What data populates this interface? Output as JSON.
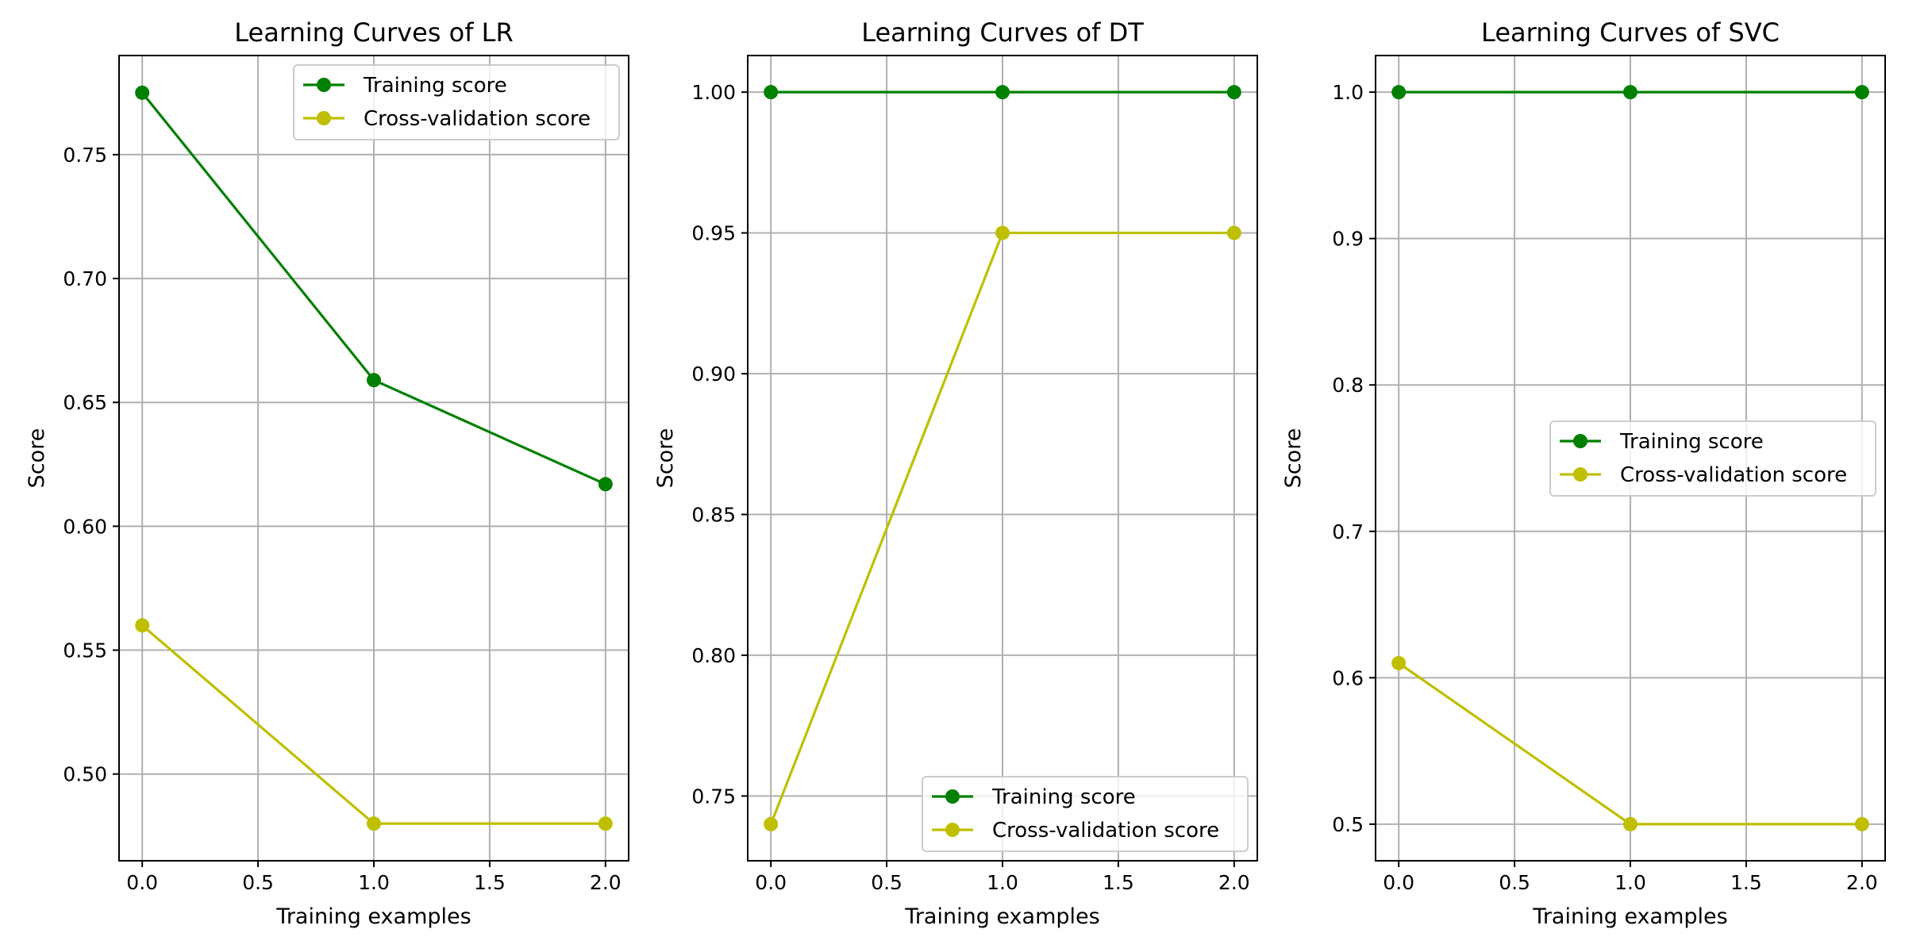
{
  "chart_data": [
    {
      "type": "line",
      "title": "Learning Curves of LR",
      "xlabel": "Training examples",
      "ylabel": "Score",
      "xlim": [
        -0.1,
        2.1
      ],
      "ylim": [
        0.465,
        0.79
      ],
      "xticks": [
        0.0,
        0.5,
        1.0,
        1.5,
        2.0
      ],
      "xtick_labels": [
        "0.0",
        "0.5",
        "1.0",
        "1.5",
        "2.0"
      ],
      "yticks": [
        0.5,
        0.55,
        0.6,
        0.65,
        0.7,
        0.75
      ],
      "ytick_labels": [
        "0.50",
        "0.55",
        "0.60",
        "0.65",
        "0.70",
        "0.75"
      ],
      "grid": true,
      "legend": "upper-right",
      "series": [
        {
          "name": "Training score",
          "color": "#008000",
          "x": [
            0,
            1,
            2
          ],
          "values": [
            0.775,
            0.659,
            0.617
          ]
        },
        {
          "name": "Cross-validation score",
          "color": "#bfbf00",
          "x": [
            0,
            1,
            2
          ],
          "values": [
            0.56,
            0.48,
            0.48
          ]
        }
      ]
    },
    {
      "type": "line",
      "title": "Learning Curves of DT",
      "xlabel": "Training examples",
      "ylabel": "Score",
      "xlim": [
        -0.1,
        2.1
      ],
      "ylim": [
        0.727,
        1.013
      ],
      "xticks": [
        0.0,
        0.5,
        1.0,
        1.5,
        2.0
      ],
      "xtick_labels": [
        "0.0",
        "0.5",
        "1.0",
        "1.5",
        "2.0"
      ],
      "yticks": [
        0.75,
        0.8,
        0.85,
        0.9,
        0.95,
        1.0
      ],
      "ytick_labels": [
        "0.75",
        "0.80",
        "0.85",
        "0.90",
        "0.95",
        "1.00"
      ],
      "grid": true,
      "legend": "lower-right",
      "series": [
        {
          "name": "Training score",
          "color": "#008000",
          "x": [
            0,
            1,
            2
          ],
          "values": [
            1.0,
            1.0,
            1.0
          ]
        },
        {
          "name": "Cross-validation score",
          "color": "#bfbf00",
          "x": [
            0,
            1,
            2
          ],
          "values": [
            0.74,
            0.95,
            0.95
          ]
        }
      ]
    },
    {
      "type": "line",
      "title": "Learning Curves of SVC",
      "xlabel": "Training examples",
      "ylabel": "Score",
      "xlim": [
        -0.1,
        2.1
      ],
      "ylim": [
        0.475,
        1.025
      ],
      "xticks": [
        0.0,
        0.5,
        1.0,
        1.5,
        2.0
      ],
      "xtick_labels": [
        "0.0",
        "0.5",
        "1.0",
        "1.5",
        "2.0"
      ],
      "yticks": [
        0.5,
        0.6,
        0.7,
        0.8,
        0.9,
        1.0
      ],
      "ytick_labels": [
        "0.5",
        "0.6",
        "0.7",
        "0.8",
        "0.9",
        "1.0"
      ],
      "grid": true,
      "legend": "center-right",
      "series": [
        {
          "name": "Training score",
          "color": "#008000",
          "x": [
            0,
            1,
            2
          ],
          "values": [
            1.0,
            1.0,
            1.0
          ]
        },
        {
          "name": "Cross-validation score",
          "color": "#bfbf00",
          "x": [
            0,
            1,
            2
          ],
          "values": [
            0.61,
            0.5,
            0.5
          ]
        }
      ]
    }
  ]
}
